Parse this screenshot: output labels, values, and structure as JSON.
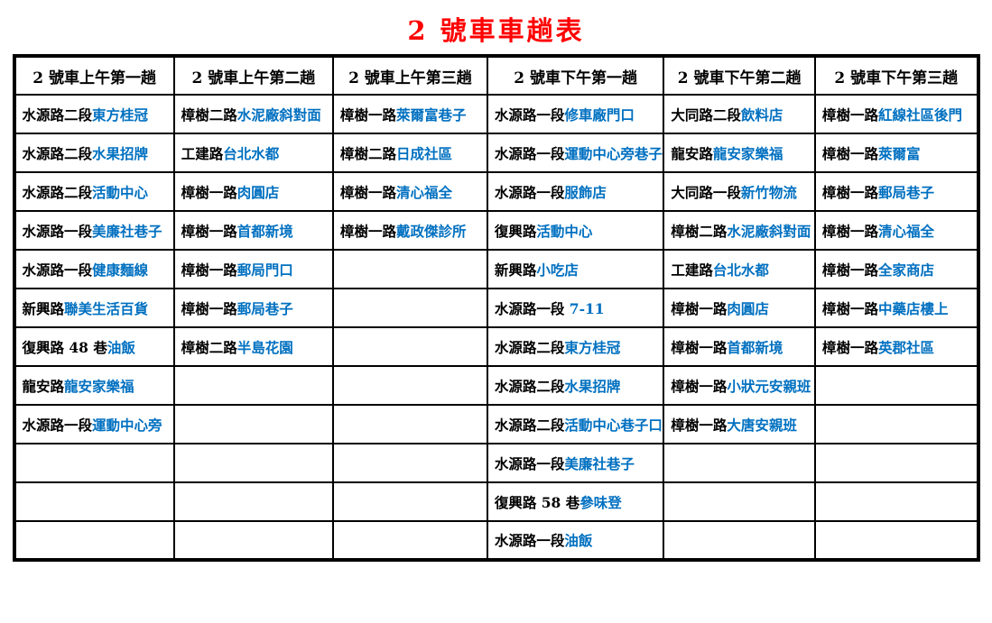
{
  "title": "2 號車車趟表",
  "colors": {
    "title_red": "#ff0000",
    "street_black": "#000000",
    "landmark_blue": "#0070c0",
    "border_black": "#000000"
  },
  "table": {
    "row_count": 12,
    "columns": [
      {
        "header": "2 號車上午第一趟",
        "stops": [
          {
            "street": "水源路二段",
            "landmark": "東方桂冠"
          },
          {
            "street": "水源路二段",
            "landmark": "水果招牌"
          },
          {
            "street": "水源路二段",
            "landmark": "活動中心"
          },
          {
            "street": "水源路一段",
            "landmark": "美廉社巷子"
          },
          {
            "street": "水源路一段",
            "landmark": "健康麵線"
          },
          {
            "street": "新興路",
            "landmark": "聯美生活百貨"
          },
          {
            "street": "復興路 48 巷",
            "landmark": "油飯"
          },
          {
            "street": "龍安路",
            "landmark": "龍安家樂福"
          },
          {
            "street": "水源路一段",
            "landmark": "運動中心旁"
          }
        ]
      },
      {
        "header": "2 號車上午第二趟",
        "stops": [
          {
            "street": "樟樹二路",
            "landmark": "水泥廠斜對面"
          },
          {
            "street": "工建路",
            "landmark": "台北水都"
          },
          {
            "street": "樟樹一路",
            "landmark": "肉圓店"
          },
          {
            "street": "樟樹一路",
            "landmark": "首都新境"
          },
          {
            "street": "樟樹一路",
            "landmark": "郵局門口"
          },
          {
            "street": "樟樹一路",
            "landmark": "郵局巷子"
          },
          {
            "street": "樟樹二路",
            "landmark": "半島花園"
          }
        ]
      },
      {
        "header": "2 號車上午第三趟",
        "stops": [
          {
            "street": "樟樹一路",
            "landmark": "萊爾富巷子"
          },
          {
            "street": "樟樹二路",
            "landmark": "日成社區"
          },
          {
            "street": "樟樹一路",
            "landmark": "清心福全"
          },
          {
            "street": "樟樹一路",
            "landmark": "戴政傑診所"
          }
        ]
      },
      {
        "header": "2 號車下午第一趟",
        "stops": [
          {
            "street": "水源路一段",
            "landmark": "修車廠門口"
          },
          {
            "street": "水源路一段",
            "landmark": "運動中心旁巷子"
          },
          {
            "street": "水源路一段",
            "landmark": "服飾店"
          },
          {
            "street": "復興路",
            "landmark": "活動中心"
          },
          {
            "street": "新興路",
            "landmark": "小吃店"
          },
          {
            "street": "水源路一段 ",
            "landmark": "7-11"
          },
          {
            "street": "水源路二段",
            "landmark": "東方桂冠"
          },
          {
            "street": "水源路二段",
            "landmark": "水果招牌"
          },
          {
            "street": "水源路二段",
            "landmark": "活動中心巷子口"
          },
          {
            "street": "水源路一段",
            "landmark": "美廉社巷子"
          },
          {
            "street": "復興路 58 巷",
            "landmark": "參味登"
          },
          {
            "street": "水源路一段",
            "landmark": "油飯"
          }
        ]
      },
      {
        "header": "2 號車下午第二趟",
        "stops": [
          {
            "street": "大同路二段",
            "landmark": "飲料店"
          },
          {
            "street": "龍安路",
            "landmark": "龍安家樂福"
          },
          {
            "street": "大同路一段",
            "landmark": "新竹物流"
          },
          {
            "street": "樟樹二路",
            "landmark": "水泥廠斜對面"
          },
          {
            "street": "工建路",
            "landmark": "台北水都"
          },
          {
            "street": "樟樹一路",
            "landmark": "肉圓店"
          },
          {
            "street": "樟樹一路",
            "landmark": "首都新境"
          },
          {
            "street": "樟樹一路",
            "landmark": "小狀元安親班"
          },
          {
            "street": "樟樹一路",
            "landmark": "大唐安親班"
          }
        ]
      },
      {
        "header": "2 號車下午第三趟",
        "stops": [
          {
            "street": "樟樹一路",
            "landmark": "紅線社區後門"
          },
          {
            "street": "樟樹一路",
            "landmark": "萊爾富"
          },
          {
            "street": "樟樹一路",
            "landmark": "郵局巷子"
          },
          {
            "street": "樟樹一路",
            "landmark": "清心福全"
          },
          {
            "street": "樟樹一路",
            "landmark": "全家商店"
          },
          {
            "street": "樟樹一路",
            "landmark": "中藥店樓上"
          },
          {
            "street": "樟樹一路",
            "landmark": "英郡社區"
          }
        ]
      }
    ]
  }
}
